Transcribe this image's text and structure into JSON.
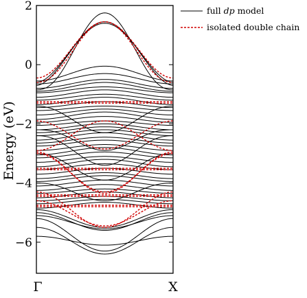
{
  "chart_data": {
    "type": "line",
    "title": "",
    "ylabel": "Energy (eV)",
    "xlabel": "",
    "x_ticks": [
      "Γ",
      "X"
    ],
    "ylim": [
      -7.05,
      2.0
    ],
    "yticks": [
      -6,
      -4,
      -2,
      0,
      2
    ],
    "legend": {
      "placement": "top-right outside",
      "entries": [
        {
          "label": "full dp model",
          "label_plain": "full ",
          "label_italic": "dp",
          "label_rest": " model",
          "color": "#000000",
          "style": "solid"
        },
        {
          "label": "isolated double chain",
          "color": "#d00000",
          "style": "dashed"
        }
      ]
    },
    "series": [
      {
        "name": "full dp model",
        "color": "#000000",
        "bands": [
          [
            -0.85,
            1.75,
            1.2
          ],
          [
            -0.7,
            1.45,
            0.9
          ],
          [
            -0.6,
            1.4,
            0.9
          ],
          [
            -0.55,
            -0.05,
            1.0
          ],
          [
            -0.65,
            -0.3,
            1.0
          ],
          [
            -0.8,
            -0.5,
            1.0
          ],
          [
            -0.9,
            -0.6,
            1.0
          ],
          [
            -0.95,
            -0.75,
            1.0
          ],
          [
            -1.1,
            -0.85,
            1.0
          ],
          [
            -1.2,
            -1.0,
            1.0
          ],
          [
            -1.35,
            -1.1,
            1.0
          ],
          [
            -1.45,
            -1.25,
            1.0
          ],
          [
            -1.55,
            -1.4,
            1.0
          ],
          [
            -1.7,
            -1.5,
            1.0
          ],
          [
            -1.85,
            -1.6,
            1.0
          ],
          [
            -1.95,
            -1.75,
            1.0
          ],
          [
            -2.05,
            -1.9,
            1.0
          ],
          [
            -2.2,
            -2.0,
            1.0
          ],
          [
            -2.3,
            -2.1,
            1.0
          ],
          [
            -2.4,
            -2.2,
            1.0
          ],
          [
            -2.55,
            -2.3,
            1.0
          ],
          [
            -2.65,
            -2.45,
            1.0
          ],
          [
            -2.75,
            -2.55,
            1.0
          ],
          [
            -2.9,
            -2.7,
            1.0
          ],
          [
            -3.05,
            -2.8,
            1.0
          ],
          [
            -3.15,
            -2.95,
            1.0
          ],
          [
            -3.3,
            -3.1,
            1.0
          ],
          [
            -3.45,
            -3.2,
            1.0
          ],
          [
            -3.55,
            -3.35,
            1.0
          ],
          [
            -3.7,
            -3.5,
            1.0
          ],
          [
            -3.85,
            -3.65,
            1.0
          ],
          [
            -3.95,
            -3.75,
            1.0
          ],
          [
            -4.1,
            -3.9,
            1.0
          ],
          [
            -4.25,
            -4.05,
            1.0
          ],
          [
            -4.35,
            -4.2,
            1.0
          ],
          [
            -4.5,
            -4.3,
            1.0
          ],
          [
            -4.6,
            -4.45,
            1.0
          ],
          [
            -4.7,
            -4.55,
            1.0
          ],
          [
            -4.85,
            -4.65,
            1.0
          ],
          [
            -4.9,
            -5.5,
            1.0
          ],
          [
            -5.0,
            -5.6,
            1.0
          ],
          [
            -5.1,
            -5.55,
            1.0
          ],
          [
            -5.2,
            -6.3,
            1.0
          ],
          [
            -5.5,
            -6.4,
            1.0
          ],
          [
            -5.8,
            -6.1,
            1.0
          ],
          [
            -2.2,
            -2.9,
            1.3
          ],
          [
            -2.4,
            -3.4,
            1.2
          ],
          [
            -4.0,
            -4.6,
            1.2
          ],
          [
            -1.4,
            -2.3,
            1.1
          ],
          [
            -3.0,
            -3.9,
            1.1
          ]
        ]
      },
      {
        "name": "isolated double chain",
        "color": "#d00000",
        "bands": [
          [
            -0.45,
            1.45,
            1.0
          ],
          [
            -0.6,
            1.45,
            1.1
          ],
          [
            -1.3,
            -1.3,
            1.0
          ],
          [
            -1.25,
            -1.25,
            1.0
          ],
          [
            -1.9,
            -2.85,
            1.0
          ],
          [
            -2.9,
            -1.9,
            1.0
          ],
          [
            -3.5,
            -3.5,
            1.0
          ],
          [
            -3.55,
            -3.55,
            1.0
          ],
          [
            -2.95,
            -4.35,
            1.0
          ],
          [
            -3.0,
            -4.3,
            1.0
          ],
          [
            -4.4,
            -4.4,
            1.0
          ],
          [
            -4.45,
            -4.45,
            1.0
          ],
          [
            -4.75,
            -4.75,
            1.0
          ],
          [
            -4.8,
            -4.8,
            1.0
          ],
          [
            -4.3,
            -5.5,
            1.0
          ],
          [
            -4.6,
            -5.45,
            1.0
          ]
        ]
      }
    ]
  }
}
